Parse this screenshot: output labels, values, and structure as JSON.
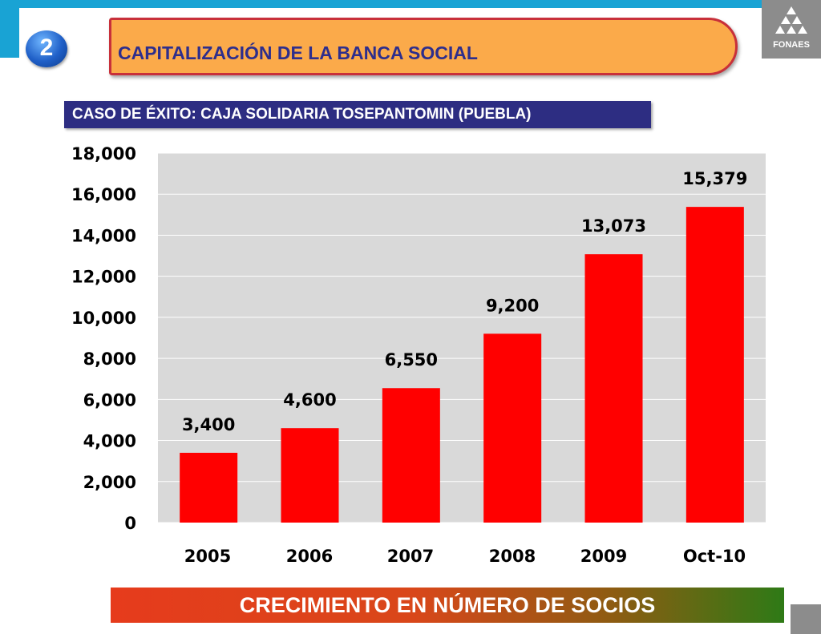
{
  "slide_number": "2",
  "title": "CAPITALIZACIÓN DE LA BANCA SOCIAL",
  "subtitle": "CASO DE ÉXITO: CAJA SOLIDARIA TOSEPANTOMIN (PUEBLA)",
  "logo_text": "FONAES",
  "footer": "CRECIMIENTO EN NÚMERO DE SOCIOS",
  "colors": {
    "bar": "#ff0000",
    "plot_background": "#d9d9d9",
    "title_banner": "#fbaa4a",
    "subtitle_banner": "#2d2d82",
    "accent_blue": "#19a3d4"
  },
  "chart_data": {
    "type": "bar",
    "categories": [
      "2005",
      "2006",
      "2007",
      "2008",
      "2009",
      "Oct-10"
    ],
    "values": [
      3400,
      4600,
      6550,
      9200,
      13073,
      15379
    ],
    "value_labels": [
      "3,400",
      "4,600",
      "6,550",
      "9,200",
      "13,073",
      "15,379"
    ],
    "ylim": [
      0,
      18000
    ],
    "y_ticks": [
      0,
      2000,
      4000,
      6000,
      8000,
      10000,
      12000,
      14000,
      16000,
      18000
    ],
    "y_tick_labels": [
      "0",
      "2,000",
      "4,000",
      "6,000",
      "8,000",
      "10,000",
      "12,000",
      "14,000",
      "16,000",
      "18,000"
    ],
    "grid": true,
    "legend": "none"
  }
}
